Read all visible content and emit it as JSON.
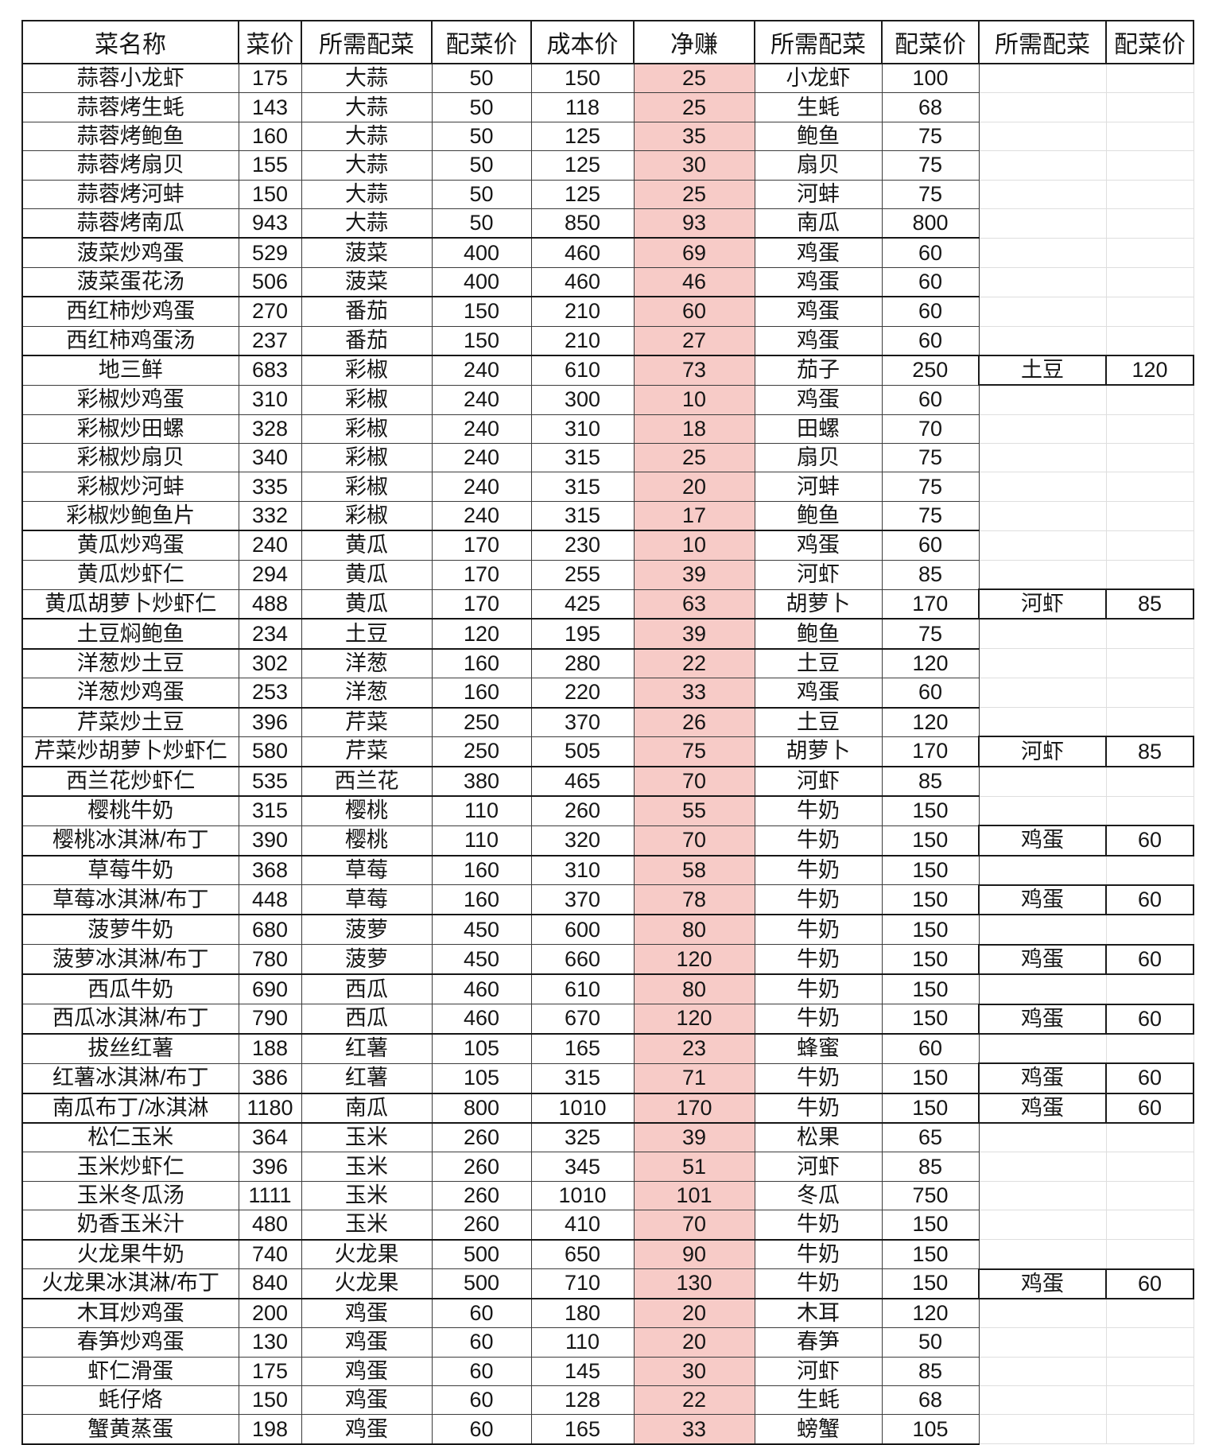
{
  "table": {
    "highlight_color": "#f7cbc7",
    "columns": [
      "菜名称",
      "菜价",
      "所需配菜",
      "配菜价",
      "成本价",
      "净赚",
      "所需配菜",
      "配菜价",
      "所需配菜",
      "配菜价"
    ],
    "rows": [
      {
        "cells": [
          "蒜蓉小龙虾",
          "175",
          "大蒜",
          "50",
          "150",
          "25",
          "小龙虾",
          "100",
          "",
          ""
        ],
        "group_end": false
      },
      {
        "cells": [
          "蒜蓉烤生蚝",
          "143",
          "大蒜",
          "50",
          "118",
          "25",
          "生蚝",
          "68",
          "",
          ""
        ],
        "group_end": false
      },
      {
        "cells": [
          "蒜蓉烤鲍鱼",
          "160",
          "大蒜",
          "50",
          "125",
          "35",
          "鲍鱼",
          "75",
          "",
          ""
        ],
        "group_end": false
      },
      {
        "cells": [
          "蒜蓉烤扇贝",
          "155",
          "大蒜",
          "50",
          "125",
          "30",
          "扇贝",
          "75",
          "",
          ""
        ],
        "group_end": false
      },
      {
        "cells": [
          "蒜蓉烤河蚌",
          "150",
          "大蒜",
          "50",
          "125",
          "25",
          "河蚌",
          "75",
          "",
          ""
        ],
        "group_end": false
      },
      {
        "cells": [
          "蒜蓉烤南瓜",
          "943",
          "大蒜",
          "50",
          "850",
          "93",
          "南瓜",
          "800",
          "",
          ""
        ],
        "group_end": true
      },
      {
        "cells": [
          "菠菜炒鸡蛋",
          "529",
          "菠菜",
          "400",
          "460",
          "69",
          "鸡蛋",
          "60",
          "",
          ""
        ],
        "group_end": false
      },
      {
        "cells": [
          "菠菜蛋花汤",
          "506",
          "菠菜",
          "400",
          "460",
          "46",
          "鸡蛋",
          "60",
          "",
          ""
        ],
        "group_end": true
      },
      {
        "cells": [
          "西红柿炒鸡蛋",
          "270",
          "番茄",
          "150",
          "210",
          "60",
          "鸡蛋",
          "60",
          "",
          ""
        ],
        "group_end": false
      },
      {
        "cells": [
          "西红柿鸡蛋汤",
          "237",
          "番茄",
          "150",
          "210",
          "27",
          "鸡蛋",
          "60",
          "",
          ""
        ],
        "group_end": true
      },
      {
        "cells": [
          "地三鲜",
          "683",
          "彩椒",
          "240",
          "610",
          "73",
          "茄子",
          "250",
          "土豆",
          "120"
        ],
        "group_end": false
      },
      {
        "cells": [
          "彩椒炒鸡蛋",
          "310",
          "彩椒",
          "240",
          "300",
          "10",
          "鸡蛋",
          "60",
          "",
          ""
        ],
        "group_end": false
      },
      {
        "cells": [
          "彩椒炒田螺",
          "328",
          "彩椒",
          "240",
          "310",
          "18",
          "田螺",
          "70",
          "",
          ""
        ],
        "group_end": false
      },
      {
        "cells": [
          "彩椒炒扇贝",
          "340",
          "彩椒",
          "240",
          "315",
          "25",
          "扇贝",
          "75",
          "",
          ""
        ],
        "group_end": false
      },
      {
        "cells": [
          "彩椒炒河蚌",
          "335",
          "彩椒",
          "240",
          "315",
          "20",
          "河蚌",
          "75",
          "",
          ""
        ],
        "group_end": false
      },
      {
        "cells": [
          "彩椒炒鲍鱼片",
          "332",
          "彩椒",
          "240",
          "315",
          "17",
          "鲍鱼",
          "75",
          "",
          ""
        ],
        "group_end": true
      },
      {
        "cells": [
          "黄瓜炒鸡蛋",
          "240",
          "黄瓜",
          "170",
          "230",
          "10",
          "鸡蛋",
          "60",
          "",
          ""
        ],
        "group_end": false
      },
      {
        "cells": [
          "黄瓜炒虾仁",
          "294",
          "黄瓜",
          "170",
          "255",
          "39",
          "河虾",
          "85",
          "",
          ""
        ],
        "group_end": false
      },
      {
        "cells": [
          "黄瓜胡萝卜炒虾仁",
          "488",
          "黄瓜",
          "170",
          "425",
          "63",
          "胡萝卜",
          "170",
          "河虾",
          "85"
        ],
        "group_end": true
      },
      {
        "cells": [
          "土豆焖鲍鱼",
          "234",
          "土豆",
          "120",
          "195",
          "39",
          "鲍鱼",
          "75",
          "",
          ""
        ],
        "group_end": true
      },
      {
        "cells": [
          "洋葱炒土豆",
          "302",
          "洋葱",
          "160",
          "280",
          "22",
          "土豆",
          "120",
          "",
          ""
        ],
        "group_end": false
      },
      {
        "cells": [
          "洋葱炒鸡蛋",
          "253",
          "洋葱",
          "160",
          "220",
          "33",
          "鸡蛋",
          "60",
          "",
          ""
        ],
        "group_end": true
      },
      {
        "cells": [
          "芹菜炒土豆",
          "396",
          "芹菜",
          "250",
          "370",
          "26",
          "土豆",
          "120",
          "",
          ""
        ],
        "group_end": false
      },
      {
        "cells": [
          "芹菜炒胡萝卜炒虾仁",
          "580",
          "芹菜",
          "250",
          "505",
          "75",
          "胡萝卜",
          "170",
          "河虾",
          "85"
        ],
        "group_end": true
      },
      {
        "cells": [
          "西兰花炒虾仁",
          "535",
          "西兰花",
          "380",
          "465",
          "70",
          "河虾",
          "85",
          "",
          ""
        ],
        "group_end": true
      },
      {
        "cells": [
          "樱桃牛奶",
          "315",
          "樱桃",
          "110",
          "260",
          "55",
          "牛奶",
          "150",
          "",
          ""
        ],
        "group_end": false
      },
      {
        "cells": [
          "樱桃冰淇淋/布丁",
          "390",
          "樱桃",
          "110",
          "320",
          "70",
          "牛奶",
          "150",
          "鸡蛋",
          "60"
        ],
        "group_end": true
      },
      {
        "cells": [
          "草莓牛奶",
          "368",
          "草莓",
          "160",
          "310",
          "58",
          "牛奶",
          "150",
          "",
          ""
        ],
        "group_end": false
      },
      {
        "cells": [
          "草莓冰淇淋/布丁",
          "448",
          "草莓",
          "160",
          "370",
          "78",
          "牛奶",
          "150",
          "鸡蛋",
          "60"
        ],
        "group_end": true
      },
      {
        "cells": [
          "菠萝牛奶",
          "680",
          "菠萝",
          "450",
          "600",
          "80",
          "牛奶",
          "150",
          "",
          ""
        ],
        "group_end": false
      },
      {
        "cells": [
          "菠萝冰淇淋/布丁",
          "780",
          "菠萝",
          "450",
          "660",
          "120",
          "牛奶",
          "150",
          "鸡蛋",
          "60"
        ],
        "group_end": true
      },
      {
        "cells": [
          "西瓜牛奶",
          "690",
          "西瓜",
          "460",
          "610",
          "80",
          "牛奶",
          "150",
          "",
          ""
        ],
        "group_end": false
      },
      {
        "cells": [
          "西瓜冰淇淋/布丁",
          "790",
          "西瓜",
          "460",
          "670",
          "120",
          "牛奶",
          "150",
          "鸡蛋",
          "60"
        ],
        "group_end": true
      },
      {
        "cells": [
          "拔丝红薯",
          "188",
          "红薯",
          "105",
          "165",
          "23",
          "蜂蜜",
          "60",
          "",
          ""
        ],
        "group_end": false
      },
      {
        "cells": [
          "红薯冰淇淋/布丁",
          "386",
          "红薯",
          "105",
          "315",
          "71",
          "牛奶",
          "150",
          "鸡蛋",
          "60"
        ],
        "group_end": true
      },
      {
        "cells": [
          "南瓜布丁/冰淇淋",
          "1180",
          "南瓜",
          "800",
          "1010",
          "170",
          "牛奶",
          "150",
          "鸡蛋",
          "60"
        ],
        "group_end": true
      },
      {
        "cells": [
          "松仁玉米",
          "364",
          "玉米",
          "260",
          "325",
          "39",
          "松果",
          "65",
          "",
          ""
        ],
        "group_end": false
      },
      {
        "cells": [
          "玉米炒虾仁",
          "396",
          "玉米",
          "260",
          "345",
          "51",
          "河虾",
          "85",
          "",
          ""
        ],
        "group_end": false
      },
      {
        "cells": [
          "玉米冬瓜汤",
          "1111",
          "玉米",
          "260",
          "1010",
          "101",
          "冬瓜",
          "750",
          "",
          ""
        ],
        "group_end": false
      },
      {
        "cells": [
          "奶香玉米汁",
          "480",
          "玉米",
          "260",
          "410",
          "70",
          "牛奶",
          "150",
          "",
          ""
        ],
        "group_end": true
      },
      {
        "cells": [
          "火龙果牛奶",
          "740",
          "火龙果",
          "500",
          "650",
          "90",
          "牛奶",
          "150",
          "",
          ""
        ],
        "group_end": false
      },
      {
        "cells": [
          "火龙果冰淇淋/布丁",
          "840",
          "火龙果",
          "500",
          "710",
          "130",
          "牛奶",
          "150",
          "鸡蛋",
          "60"
        ],
        "group_end": true
      },
      {
        "cells": [
          "木耳炒鸡蛋",
          "200",
          "鸡蛋",
          "60",
          "180",
          "20",
          "木耳",
          "120",
          "",
          ""
        ],
        "group_end": false
      },
      {
        "cells": [
          "春笋炒鸡蛋",
          "130",
          "鸡蛋",
          "60",
          "110",
          "20",
          "春笋",
          "50",
          "",
          ""
        ],
        "group_end": false
      },
      {
        "cells": [
          "虾仁滑蛋",
          "175",
          "鸡蛋",
          "60",
          "145",
          "30",
          "河虾",
          "85",
          "",
          ""
        ],
        "group_end": false
      },
      {
        "cells": [
          "蚝仔烙",
          "150",
          "鸡蛋",
          "60",
          "128",
          "22",
          "生蚝",
          "68",
          "",
          ""
        ],
        "group_end": false
      },
      {
        "cells": [
          "蟹黄蒸蛋",
          "198",
          "鸡蛋",
          "60",
          "165",
          "33",
          "螃蟹",
          "105",
          "",
          ""
        ],
        "group_end": true
      }
    ]
  }
}
